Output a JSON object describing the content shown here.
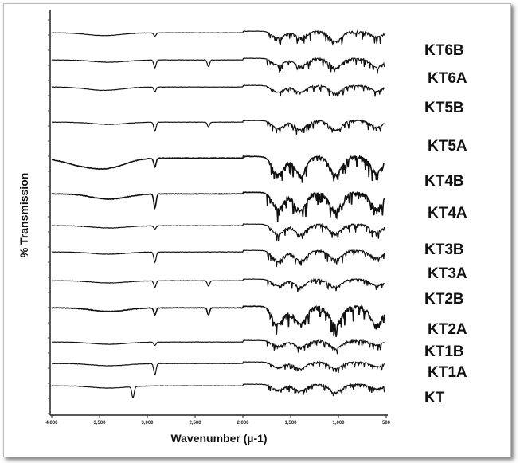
{
  "chart_data": {
    "type": "line",
    "title": "",
    "xlabel": "Wavenumber (µ-1)",
    "ylabel": "% Transmission",
    "xlim": [
      4000,
      500
    ],
    "xticks": [
      "4,000",
      "3,500",
      "3,000",
      "2,500",
      "2,000",
      "1,500",
      "1,000",
      "500"
    ],
    "grid": false,
    "legend": "right, each trace labeled",
    "series": [
      {
        "name": "KT6B",
        "peaks": [
          [
            3450,
            0.25
          ],
          [
            2920,
            0.3
          ],
          [
            1630,
            0.6
          ],
          [
            1400,
            0.5
          ],
          [
            1030,
            0.9
          ],
          [
            600,
            0.5
          ]
        ]
      },
      {
        "name": "KT6A",
        "peaks": [
          [
            3400,
            0.2
          ],
          [
            2920,
            0.7
          ],
          [
            2360,
            0.6
          ],
          [
            1630,
            0.6
          ],
          [
            1400,
            0.7
          ],
          [
            1030,
            0.8
          ],
          [
            600,
            0.8
          ]
        ]
      },
      {
        "name": "KT5B",
        "peaks": [
          [
            3450,
            0.3
          ],
          [
            2920,
            0.4
          ],
          [
            1630,
            0.6
          ],
          [
            1400,
            0.6
          ],
          [
            1030,
            0.7
          ],
          [
            600,
            0.5
          ]
        ]
      },
      {
        "name": "KT5A",
        "peaks": [
          [
            3400,
            0.2
          ],
          [
            2920,
            0.8
          ],
          [
            2360,
            0.4
          ],
          [
            1630,
            0.7
          ],
          [
            1400,
            0.8
          ],
          [
            1030,
            0.8
          ],
          [
            600,
            0.6
          ]
        ]
      },
      {
        "name": "KT4B",
        "peaks": [
          [
            3700,
            0.35
          ],
          [
            3400,
            0.5
          ],
          [
            2920,
            0.5
          ],
          [
            1630,
            1
          ],
          [
            1400,
            1
          ],
          [
            1030,
            1
          ],
          [
            600,
            0.9
          ]
        ]
      },
      {
        "name": "KT4A",
        "peaks": [
          [
            3400,
            0.3
          ],
          [
            2920,
            0.8
          ],
          [
            1630,
            0.9
          ],
          [
            1400,
            1
          ],
          [
            1030,
            1
          ],
          [
            600,
            0.9
          ]
        ]
      },
      {
        "name": "KT3B",
        "peaks": [
          [
            3400,
            0.2
          ],
          [
            2920,
            0.3
          ],
          [
            1630,
            0.9
          ],
          [
            1400,
            0.9
          ],
          [
            1030,
            0.8
          ],
          [
            600,
            0.7
          ]
        ]
      },
      {
        "name": "KT3A",
        "peaks": [
          [
            3400,
            0.2
          ],
          [
            2920,
            0.9
          ],
          [
            1630,
            0.9
          ],
          [
            1400,
            0.9
          ],
          [
            1030,
            0.8
          ],
          [
            600,
            0.7
          ]
        ]
      },
      {
        "name": "KT2B",
        "peaks": [
          [
            3400,
            0.2
          ],
          [
            2920,
            0.6
          ],
          [
            2360,
            0.5
          ],
          [
            1630,
            0.6
          ],
          [
            1400,
            0.7
          ],
          [
            1030,
            0.7
          ],
          [
            600,
            0.6
          ]
        ]
      },
      {
        "name": "KT2A",
        "peaks": [
          [
            3400,
            0.2
          ],
          [
            2920,
            0.4
          ],
          [
            2360,
            0.4
          ],
          [
            1630,
            1
          ],
          [
            1400,
            1
          ],
          [
            1030,
            1
          ],
          [
            600,
            1
          ]
        ]
      },
      {
        "name": "KT1B",
        "peaks": [
          [
            3400,
            0.2
          ],
          [
            2920,
            0.3
          ],
          [
            1630,
            0.5
          ],
          [
            1400,
            0.6
          ],
          [
            1030,
            0.7
          ],
          [
            600,
            0.4
          ]
        ]
      },
      {
        "name": "KT1A",
        "peaks": [
          [
            3400,
            0.2
          ],
          [
            2920,
            1
          ],
          [
            1630,
            0.5
          ],
          [
            1400,
            0.6
          ],
          [
            1030,
            0.6
          ],
          [
            600,
            0.4
          ]
        ]
      },
      {
        "name": "KT",
        "peaks": [
          [
            3400,
            0.2
          ],
          [
            3150,
            1
          ],
          [
            1630,
            0.5
          ],
          [
            1400,
            0.6
          ],
          [
            1030,
            0.7
          ],
          [
            600,
            0.4
          ]
        ]
      }
    ]
  }
}
